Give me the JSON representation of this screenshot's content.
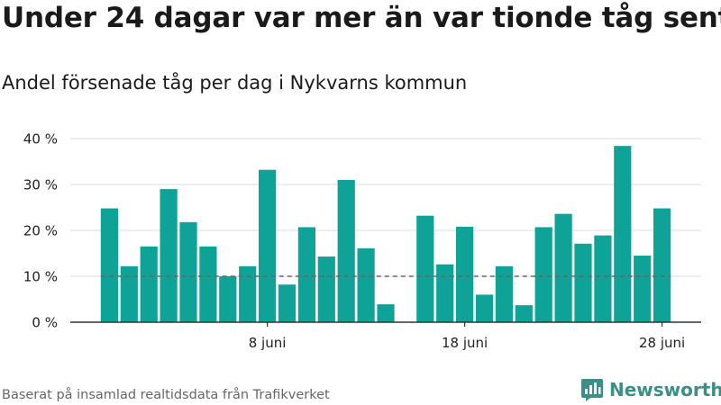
{
  "title": "Under 24 dagar var mer än var tionde tåg sent",
  "subtitle": "Andel försenade tåg per dag i Nykvarns kommun",
  "source": "Baserat på insamlad realtidsdata från Trafikverket",
  "brand": {
    "name": "Newsworthy",
    "color": "#3a8f86"
  },
  "colors": {
    "bar": "#0fa398",
    "grid": "#dddddd",
    "axis": "#333333",
    "reference": "#666666"
  },
  "chart_data": {
    "type": "bar",
    "title": "Under 24 dagar var mer än var tionde tåg sent",
    "subtitle": "Andel försenade tåg per dag i Nykvarns kommun",
    "xlabel": "",
    "ylabel": "",
    "x_ticks": [
      {
        "label": "8 juni",
        "day": 8
      },
      {
        "label": "18 juni",
        "day": 18
      },
      {
        "label": "28 juni",
        "day": 28
      }
    ],
    "y_ticks": [
      "0 %",
      "10 %",
      "20 %",
      "30 %",
      "40 %"
    ],
    "ylim": [
      0,
      40
    ],
    "reference_line": 10,
    "grid": true,
    "days": [
      {
        "day": 0,
        "value": 24.8
      },
      {
        "day": 1,
        "value": 12.2
      },
      {
        "day": 2,
        "value": 16.5
      },
      {
        "day": 3,
        "value": 29
      },
      {
        "day": 4,
        "value": 21.8
      },
      {
        "day": 5,
        "value": 16.5
      },
      {
        "day": 6,
        "value": 10
      },
      {
        "day": 7,
        "value": 12.2
      },
      {
        "day": 8,
        "value": 33.2
      },
      {
        "day": 9,
        "value": 8.2
      },
      {
        "day": 10,
        "value": 20.7
      },
      {
        "day": 11,
        "value": 14.3
      },
      {
        "day": 12,
        "value": 31
      },
      {
        "day": 13,
        "value": 16.1
      },
      {
        "day": 14,
        "value": 3.9
      },
      {
        "day": 16,
        "value": 23.2
      },
      {
        "day": 17,
        "value": 12.6
      },
      {
        "day": 18,
        "value": 20.8
      },
      {
        "day": 19,
        "value": 6
      },
      {
        "day": 20,
        "value": 12.2
      },
      {
        "day": 21,
        "value": 3.7
      },
      {
        "day": 22,
        "value": 20.7
      },
      {
        "day": 23,
        "value": 23.6
      },
      {
        "day": 24,
        "value": 17.1
      },
      {
        "day": 25,
        "value": 18.9
      },
      {
        "day": 26,
        "value": 38.4
      },
      {
        "day": 27,
        "value": 14.5
      },
      {
        "day": 28,
        "value": 24.8
      }
    ]
  }
}
